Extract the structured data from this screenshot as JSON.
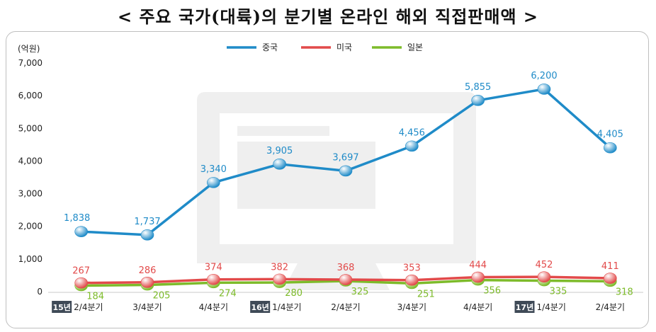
{
  "title": "< 주요 국가(대륙)의 분기별 온라인 해외 직접판매액 >",
  "colors": {
    "china": "#1f8bc8",
    "usa": "#e24a4a",
    "japan": "#7dbb2a"
  },
  "chart_data": {
    "type": "line",
    "unit_label": "(억원)",
    "ylim": [
      0,
      7000
    ],
    "yticks": [
      "0",
      "1,000",
      "2,000",
      "3,000",
      "4,000",
      "5,000",
      "6,000",
      "7,000"
    ],
    "categories": [
      {
        "year": "15년",
        "quarter": "2/4분기"
      },
      {
        "year": "",
        "quarter": "3/4분기"
      },
      {
        "year": "",
        "quarter": "4/4분기"
      },
      {
        "year": "16년",
        "quarter": "1/4분기"
      },
      {
        "year": "",
        "quarter": "2/4분기"
      },
      {
        "year": "",
        "quarter": "3/4분기"
      },
      {
        "year": "",
        "quarter": "4/4분기"
      },
      {
        "year": "17년",
        "quarter": "1/4분기"
      },
      {
        "year": "",
        "quarter": "2/4분기"
      }
    ],
    "legend_position": "top-center",
    "series": [
      {
        "name": "중국",
        "color": "#1f8bc8",
        "values": [
          1838,
          1737,
          3340,
          3905,
          3697,
          4456,
          5855,
          6200,
          4405
        ],
        "labels": [
          "1,838",
          "1,737",
          "3,340",
          "3,905",
          "3,697",
          "4,456",
          "5,855",
          "6,200",
          "4,405"
        ]
      },
      {
        "name": "미국",
        "color": "#e24a4a",
        "values": [
          267,
          286,
          374,
          382,
          368,
          353,
          444,
          452,
          411
        ],
        "labels": [
          "267",
          "286",
          "374",
          "382",
          "368",
          "353",
          "444",
          "452",
          "411"
        ]
      },
      {
        "name": "일본",
        "color": "#7dbb2a",
        "values": [
          184,
          205,
          274,
          280,
          325,
          251,
          356,
          335,
          318
        ],
        "labels": [
          "184",
          "205",
          "274",
          "280",
          "325",
          "251",
          "356",
          "335",
          "318"
        ]
      }
    ]
  }
}
